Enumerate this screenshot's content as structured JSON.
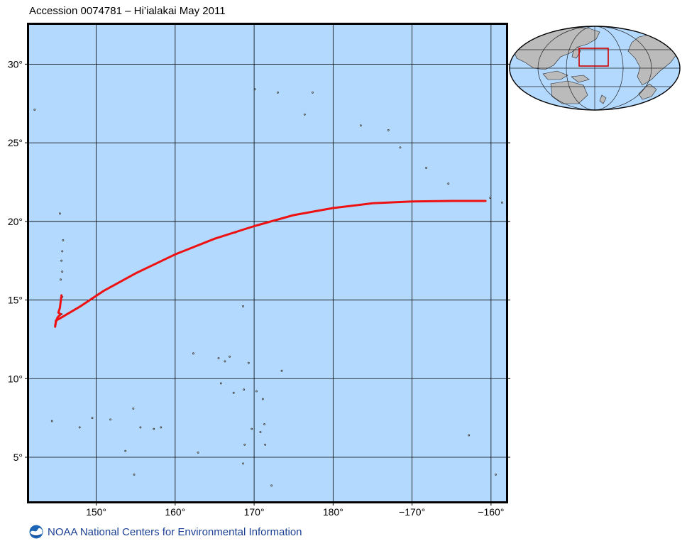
{
  "title": "Accession 0074781 – Hi’ialakai May 2011",
  "map": {
    "lon_range": [
      141.5,
      201.9
    ],
    "lat_range": [
      2.2,
      32.5
    ],
    "ocean_color": "#b3d9ff",
    "track_color": "#ee1111",
    "x_ticks": [
      {
        "lon": 150,
        "label": "150°"
      },
      {
        "lon": 160,
        "label": "160°"
      },
      {
        "lon": 170,
        "label": "170°"
      },
      {
        "lon": 180,
        "label": "180°"
      },
      {
        "lon": 190,
        "label": "−170°"
      },
      {
        "lon": 200,
        "label": "−160°"
      }
    ],
    "y_ticks": [
      {
        "lat": 5,
        "label": "5°"
      },
      {
        "lat": 10,
        "label": "10°"
      },
      {
        "lat": 15,
        "label": "15°"
      },
      {
        "lat": 20,
        "label": "20°"
      },
      {
        "lat": 25,
        "label": "25°"
      },
      {
        "lat": 30,
        "label": "30°"
      }
    ],
    "cruise_track": [
      [
        145.6,
        15.3
      ],
      [
        145.5,
        14.9
      ],
      [
        145.4,
        14.5
      ],
      [
        145.2,
        14.2
      ],
      [
        145.5,
        14.1
      ],
      [
        145.1,
        13.9
      ],
      [
        144.9,
        13.6
      ],
      [
        144.8,
        13.3
      ],
      [
        144.9,
        13.7
      ],
      [
        145.3,
        13.8
      ],
      [
        148.0,
        14.6
      ],
      [
        151.0,
        15.6
      ],
      [
        155.0,
        16.7
      ],
      [
        160.0,
        17.9
      ],
      [
        165.0,
        18.9
      ],
      [
        170.0,
        19.7
      ],
      [
        175.0,
        20.4
      ],
      [
        180.0,
        20.85
      ],
      [
        185.0,
        21.15
      ],
      [
        190.0,
        21.27
      ],
      [
        195.0,
        21.3
      ],
      [
        199.3,
        21.3
      ]
    ],
    "islands": [
      [
        145.7,
        15.2
      ],
      [
        145.6,
        14.1
      ],
      [
        144.8,
        13.4
      ],
      [
        145.8,
        18.8
      ],
      [
        145.7,
        18.1
      ],
      [
        145.6,
        17.5
      ],
      [
        145.7,
        16.8
      ],
      [
        145.5,
        16.3
      ],
      [
        145.4,
        20.5
      ],
      [
        142.2,
        27.1
      ],
      [
        170.1,
        28.4
      ],
      [
        173.0,
        28.2
      ],
      [
        177.4,
        28.2
      ],
      [
        183.5,
        26.1
      ],
      [
        187.0,
        25.8
      ],
      [
        188.5,
        24.7
      ],
      [
        191.8,
        23.4
      ],
      [
        167.6,
        19.3
      ],
      [
        168.6,
        14.6
      ],
      [
        162.3,
        11.6
      ],
      [
        165.5,
        11.3
      ],
      [
        166.3,
        11.1
      ],
      [
        166.9,
        11.4
      ],
      [
        169.3,
        11.0
      ],
      [
        165.8,
        9.7
      ],
      [
        167.4,
        9.1
      ],
      [
        168.7,
        9.3
      ],
      [
        170.3,
        9.2
      ],
      [
        171.1,
        8.7
      ],
      [
        171.3,
        7.1
      ],
      [
        169.7,
        6.8
      ],
      [
        168.8,
        5.8
      ],
      [
        162.9,
        5.3
      ],
      [
        158.2,
        6.9
      ],
      [
        157.3,
        6.8
      ],
      [
        155.6,
        6.9
      ],
      [
        151.8,
        7.4
      ],
      [
        153.7,
        5.4
      ],
      [
        154.7,
        8.1
      ],
      [
        149.5,
        7.5
      ],
      [
        144.4,
        7.3
      ],
      [
        147.9,
        6.9
      ],
      [
        171.4,
        5.8
      ],
      [
        168.6,
        4.6
      ],
      [
        172.2,
        3.2
      ],
      [
        154.8,
        3.9
      ],
      [
        197.2,
        6.4
      ],
      [
        200.6,
        3.9
      ],
      [
        194.6,
        22.4
      ],
      [
        199.9,
        21.5
      ],
      [
        201.4,
        21.2
      ],
      [
        173.5,
        10.5
      ],
      [
        170.8,
        6.6
      ],
      [
        176.4,
        26.8
      ]
    ]
  },
  "inset": {
    "land_color": "#bbbbbb",
    "ocean_color": "#b3d9ff",
    "box_color": "#cc0000"
  },
  "footer": {
    "text": "NOAA National Centers for Environmental Information",
    "logo_color": "#1c64b4"
  }
}
